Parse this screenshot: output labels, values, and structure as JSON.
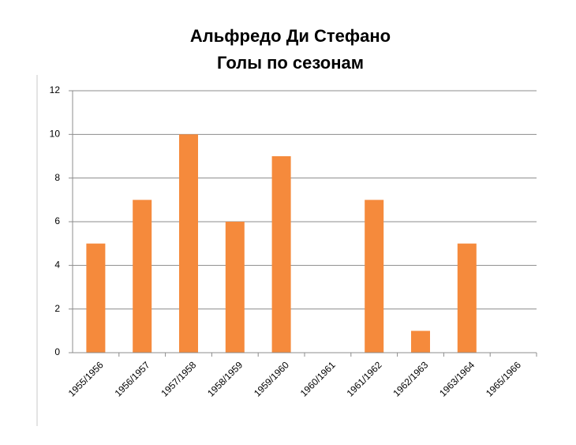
{
  "chart_data": {
    "type": "bar",
    "title": [
      "Альфредо Ди Стефано",
      "Голы по сезонам"
    ],
    "categories": [
      "1955/1956",
      "1956/1957",
      "1957/1958",
      "1958/1959",
      "1959/1960",
      "1960/1961",
      "1961/1962",
      "1962/1963",
      "1963/1964",
      "1965/1966"
    ],
    "values": [
      5,
      7,
      10,
      6,
      9,
      0,
      7,
      1,
      5,
      0
    ],
    "color": "#f58a3c",
    "ylim": [
      0,
      12
    ],
    "yticks": [
      0,
      2,
      4,
      6,
      8,
      10,
      12
    ],
    "grid": true
  }
}
